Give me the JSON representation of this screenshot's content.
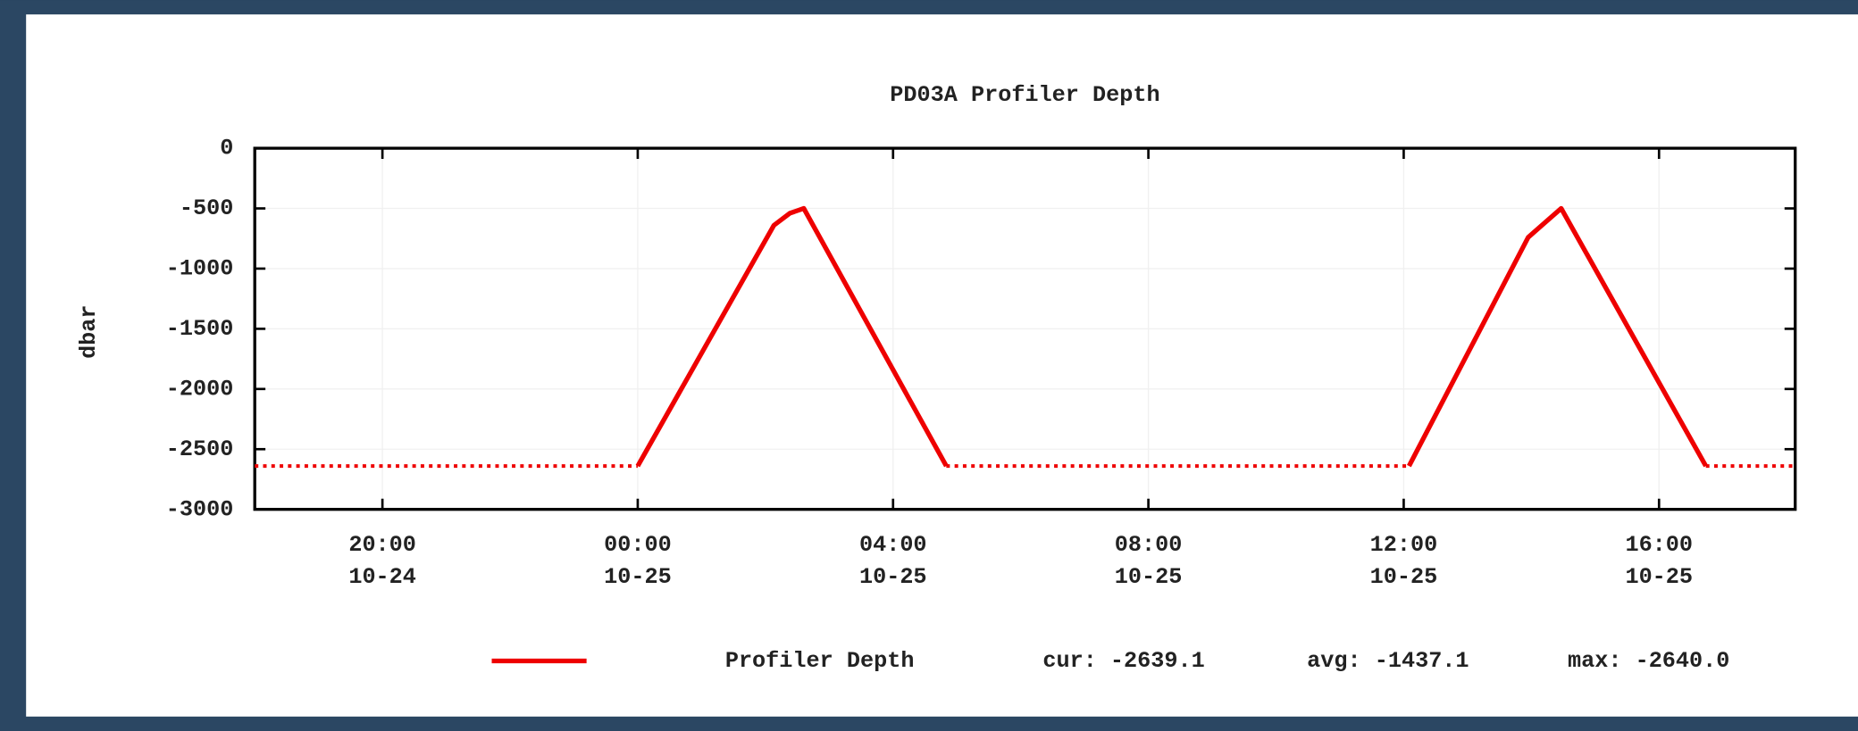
{
  "chart_data": {
    "type": "line",
    "title": "PD03A Profiler Depth",
    "ylabel": "dbar",
    "xlim": [
      "10-24 18:00",
      "10-25 18:08"
    ],
    "xticks": [
      {
        "value": "10-24 20:00",
        "label": [
          "20:00",
          "10-24"
        ]
      },
      {
        "value": "10-25 00:00",
        "label": [
          "00:00",
          "10-25"
        ]
      },
      {
        "value": "10-25 04:00",
        "label": [
          "04:00",
          "10-25"
        ]
      },
      {
        "value": "10-25 08:00",
        "label": [
          "08:00",
          "10-25"
        ]
      },
      {
        "value": "10-25 12:00",
        "label": [
          "12:00",
          "10-25"
        ]
      },
      {
        "value": "10-25 16:00",
        "label": [
          "16:00",
          "10-25"
        ]
      }
    ],
    "ylim": [
      -3000,
      0
    ],
    "yticks": [
      0,
      -500,
      -1000,
      -1500,
      -2000,
      -2500,
      -3000
    ],
    "grid": true,
    "series": [
      {
        "name": "Profiler Depth",
        "color": "#ee0000",
        "dashed": false,
        "x": [
          "10-25 00:00",
          "10-25 02:08",
          "10-25 02:23",
          "10-25 02:36",
          "10-25 04:50",
          "10-25 08:00",
          "10-25 12:05",
          "10-25 13:57",
          "10-25 14:28",
          "10-25 16:44"
        ],
        "values": [
          -2640,
          -640,
          -540,
          -500,
          -2640,
          null,
          -2640,
          -740,
          -500,
          -2640
        ]
      },
      {
        "color": "#ee0000",
        "dashed": true,
        "x": [
          "10-24 18:00",
          "10-25 00:00",
          "10-25 02:00",
          "10-25 04:50",
          "10-25 12:05",
          "10-25 14:00",
          "10-25 16:44",
          "10-25 18:08"
        ],
        "values": [
          -2640,
          -2640,
          null,
          -2640,
          -2640,
          null,
          -2640,
          -2640
        ]
      }
    ],
    "legend_stats": [
      "cur: -2639.1",
      "avg: -1437.1",
      "max: -2640.0"
    ]
  }
}
